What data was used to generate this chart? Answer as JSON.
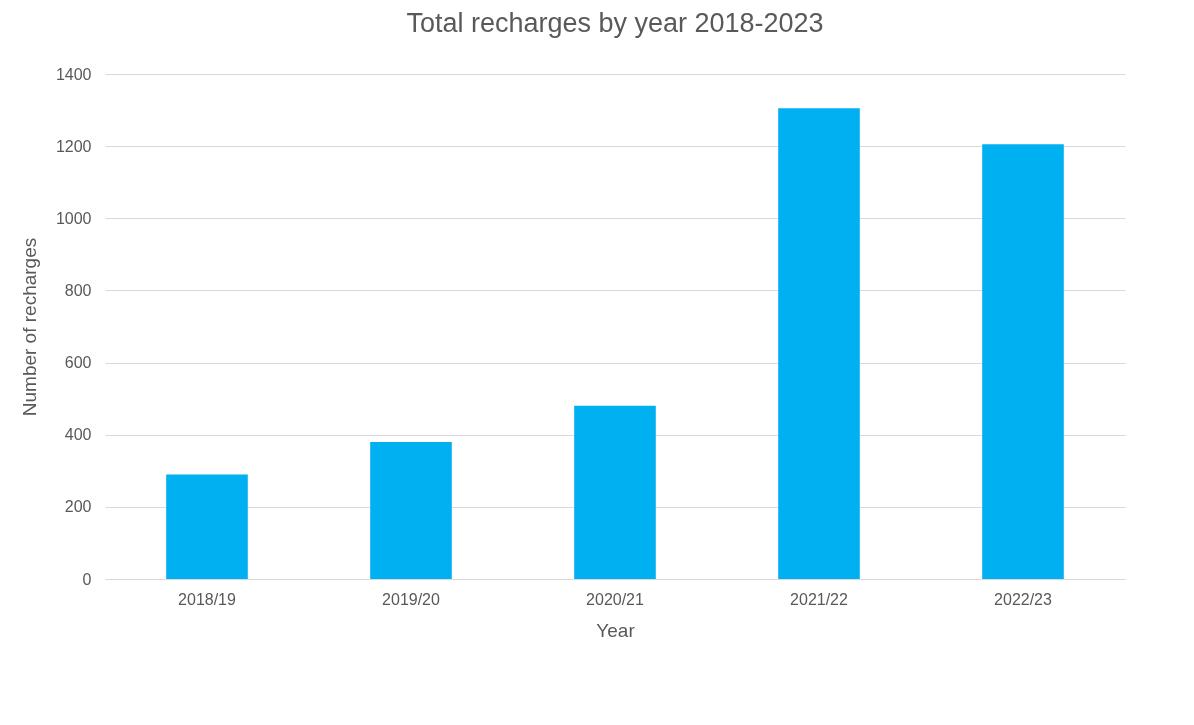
{
  "chart_data": {
    "type": "bar",
    "title": "Total recharges by year 2018-2023",
    "xlabel": "Year",
    "ylabel": "Number of recharges",
    "categories": [
      "2018/19",
      "2019/20",
      "2020/21",
      "2021/22",
      "2022/23"
    ],
    "values": [
      290,
      380,
      480,
      1305,
      1205
    ],
    "color": "#00b0f0",
    "ylim": [
      0,
      1400
    ],
    "yticks": [
      0,
      200,
      400,
      600,
      800,
      1000,
      1200,
      1400
    ],
    "grid": "y"
  }
}
